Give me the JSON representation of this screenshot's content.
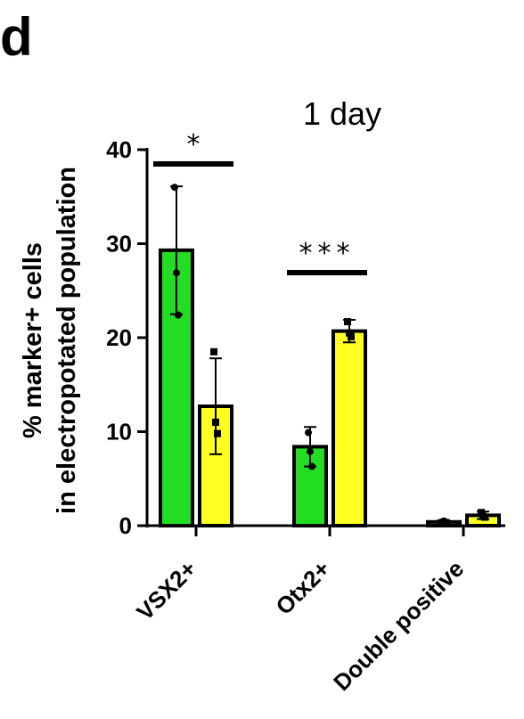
{
  "panel_label": "d",
  "chart_data": {
    "type": "bar",
    "title": "1 day",
    "ylabel_lines": [
      "% marker+ cells",
      "in electropotated population"
    ],
    "xlabel": "",
    "categories": [
      "VSX2+",
      "Otx2+",
      "Double positive"
    ],
    "ylim": [
      0,
      40
    ],
    "yticks": [
      0,
      10,
      20,
      30,
      40
    ],
    "grid": false,
    "series": [
      {
        "color": "#22dd22",
        "values": [
          29.3,
          8.4,
          0.4
        ],
        "errors": [
          6.8,
          2.1,
          0.2
        ],
        "points": [
          [
            36.0,
            26.9,
            22.4
          ],
          [
            9.9,
            7.9,
            6.3
          ],
          [
            0.4,
            0.5,
            0.4
          ]
        ]
      },
      {
        "color": "#ffff22",
        "values": [
          12.7,
          20.7,
          1.1
        ],
        "errors": [
          5.1,
          1.2,
          0.4
        ],
        "points": [
          [
            18.5,
            11.0,
            9.8
          ],
          [
            21.7,
            20.5,
            20.1
          ],
          [
            1.4,
            1.0,
            0.9
          ]
        ]
      }
    ],
    "significance": [
      {
        "category": "VSX2+",
        "label": "*"
      },
      {
        "category": "Otx2+",
        "label": "***"
      }
    ]
  }
}
